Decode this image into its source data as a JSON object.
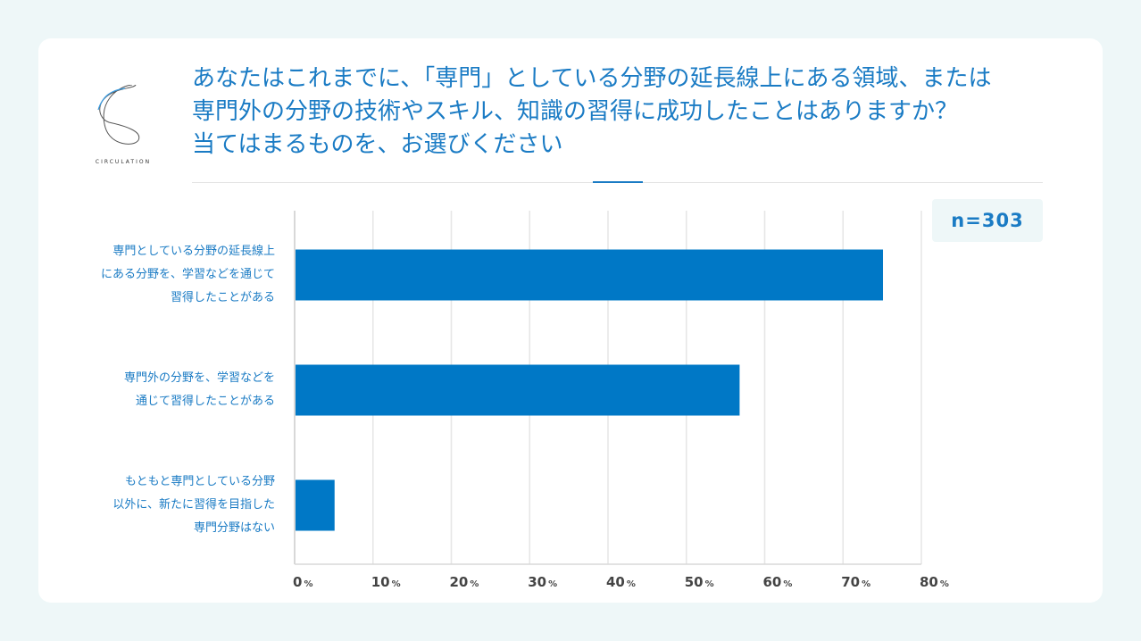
{
  "brand": {
    "logo_text": "CIRCULATION"
  },
  "header": {
    "title": "あなたはこれまでに、「専門」としている分野の延長線上にある領域、または\n専門外の分野の技術やスキル、知識の習得に成功したことはありますか？\n当てはまるものを、お選びください"
  },
  "sample": {
    "label": "n=303"
  },
  "colors": {
    "accent": "#1a7bc4",
    "bar": "#0078c6",
    "grid": "#e6e6e6",
    "tick": "#444444"
  },
  "chart_data": {
    "type": "bar",
    "orientation": "horizontal",
    "categories": [
      "専門としている分野の延長線上\nにある分野を、学習などを通じて\n習得したことがある",
      "専門外の分野を、学習などを\n通じて習得したことがある",
      "もともと専門としている分野\n以外に、新たに習得を目指した\n専門分野はない"
    ],
    "values": [
      75.1,
      56.8,
      5.1
    ],
    "xlim": [
      0,
      80
    ],
    "xticks": [
      0,
      10,
      20,
      30,
      40,
      50,
      60,
      70,
      80
    ],
    "tick_labels": [
      "0%",
      "10%",
      "20%",
      "30%",
      "40%",
      "50%",
      "60%",
      "70%",
      "80%"
    ],
    "xlabel": "",
    "ylabel": "",
    "grid": true
  }
}
